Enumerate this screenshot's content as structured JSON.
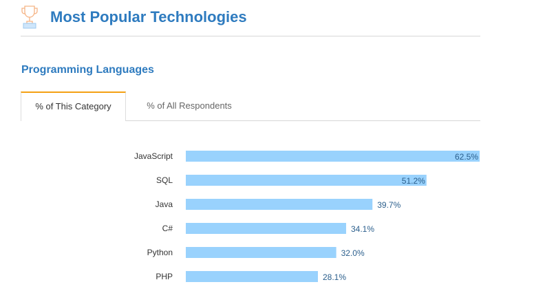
{
  "header": {
    "title": "Most Popular Technologies",
    "icon": "trophy-icon"
  },
  "section": {
    "title": "Programming Languages"
  },
  "tabs": [
    {
      "label": "% of This Category",
      "active": true
    },
    {
      "label": "% of All Respondents",
      "active": false
    }
  ],
  "chart_data": {
    "type": "bar",
    "orientation": "horizontal",
    "title": "Programming Languages",
    "categories": [
      "JavaScript",
      "SQL",
      "Java",
      "C#",
      "Python",
      "PHP"
    ],
    "values": [
      62.5,
      51.2,
      39.7,
      34.1,
      32.0,
      28.1
    ],
    "labels": [
      "62.5%",
      "51.2%",
      "39.7%",
      "34.1%",
      "32.0%",
      "28.1%"
    ],
    "xlim": [
      0,
      62.5
    ],
    "bar_color": "#99d2fd",
    "label_color": "#2a5e8c"
  }
}
